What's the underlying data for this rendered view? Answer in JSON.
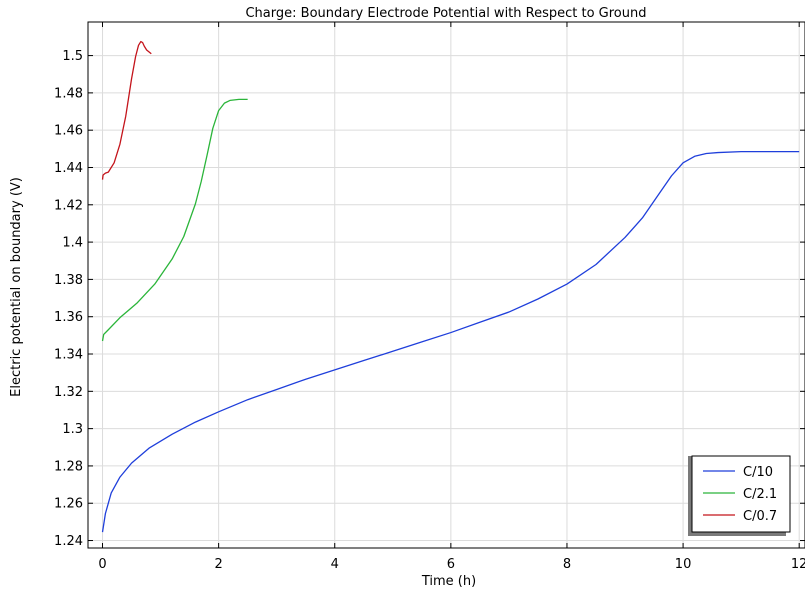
{
  "chart_data": {
    "type": "line",
    "title": "Charge: Boundary Electrode Potential with Respect to Ground",
    "xlabel": "Time (h)",
    "ylabel": "Electric potential on boundary (V)",
    "xlim": [
      -0.25,
      12.1
    ],
    "ylim": [
      1.236,
      1.518
    ],
    "x_ticks": [
      0,
      2,
      4,
      6,
      8,
      10,
      12
    ],
    "x_tick_labels": [
      "0",
      "2",
      "4",
      "6",
      "8",
      "10",
      "12"
    ],
    "y_ticks": [
      1.24,
      1.26,
      1.28,
      1.3,
      1.32,
      1.34,
      1.36,
      1.38,
      1.4,
      1.42,
      1.44,
      1.46,
      1.48,
      1.5
    ],
    "y_tick_labels": [
      "1.24",
      "1.26",
      "1.28",
      "1.3",
      "1.32",
      "1.34",
      "1.36",
      "1.38",
      "1.4",
      "1.42",
      "1.44",
      "1.46",
      "1.48",
      "1.5"
    ],
    "grid": true,
    "legend_position": "bottom-right",
    "series": [
      {
        "name": "C/10",
        "color": "#1f3fdb",
        "x": [
          0,
          0.05,
          0.15,
          0.3,
          0.5,
          0.8,
          1.2,
          1.6,
          2.0,
          2.5,
          3.0,
          3.5,
          4.0,
          4.5,
          5.0,
          5.5,
          6.0,
          6.5,
          7.0,
          7.5,
          8.0,
          8.5,
          9.0,
          9.3,
          9.6,
          9.8,
          10.0,
          10.2,
          10.4,
          10.6,
          11.0,
          12.0
        ],
        "y": [
          1.2445,
          1.2545,
          1.2655,
          1.274,
          1.2815,
          1.2895,
          1.297,
          1.3035,
          1.309,
          1.3155,
          1.321,
          1.3265,
          1.3315,
          1.3365,
          1.3415,
          1.3465,
          1.3515,
          1.357,
          1.3625,
          1.3695,
          1.3775,
          1.388,
          1.4025,
          1.413,
          1.4265,
          1.4355,
          1.4425,
          1.446,
          1.4475,
          1.448,
          1.4485,
          1.4485
        ]
      },
      {
        "name": "C/2.1",
        "color": "#2bb53a",
        "x": [
          0,
          0.02,
          0.1,
          0.3,
          0.6,
          0.9,
          1.2,
          1.4,
          1.6,
          1.7,
          1.8,
          1.9,
          2.0,
          2.1,
          2.2,
          2.35,
          2.5
        ],
        "y": [
          1.347,
          1.3505,
          1.353,
          1.3595,
          1.3675,
          1.3775,
          1.391,
          1.403,
          1.4205,
          1.4325,
          1.4465,
          1.461,
          1.4705,
          1.4745,
          1.476,
          1.4765,
          1.4765
        ]
      },
      {
        "name": "C/0.7",
        "color": "#c4141b",
        "x": [
          0,
          0.01,
          0.05,
          0.1,
          0.2,
          0.3,
          0.4,
          0.5,
          0.57,
          0.62,
          0.66,
          0.69,
          0.72,
          0.76,
          0.8,
          0.84
        ],
        "y": [
          1.4335,
          1.436,
          1.437,
          1.4375,
          1.4425,
          1.4525,
          1.4675,
          1.4875,
          1.4995,
          1.5055,
          1.5075,
          1.507,
          1.505,
          1.503,
          1.502,
          1.501
        ]
      }
    ]
  }
}
